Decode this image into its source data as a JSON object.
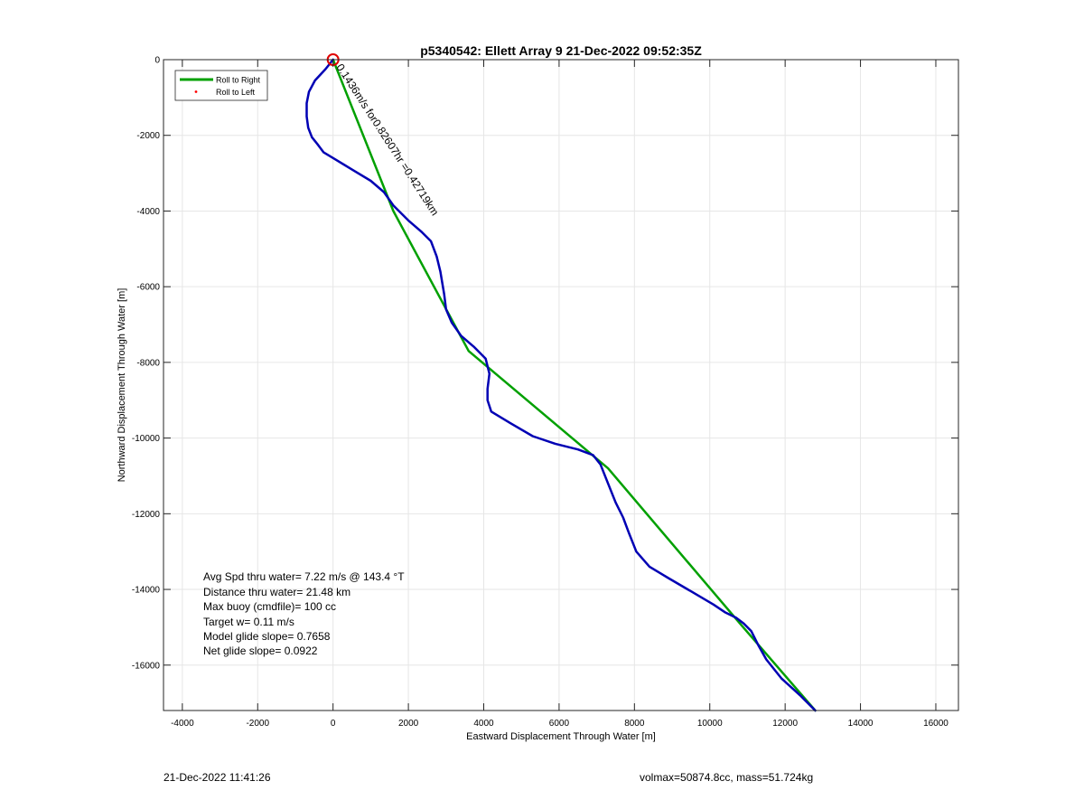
{
  "chart_data": {
    "type": "line",
    "title": "p5340542: Ellett Array 9 21-Dec-2022 09:52:35Z",
    "xlabel": "Eastward Displacement Through Water [m]",
    "ylabel": "Northward Displacement Through Water [m]",
    "xlim": [
      -4500,
      16600
    ],
    "ylim": [
      -17200,
      0
    ],
    "xticks": [
      -4000,
      -2000,
      0,
      2000,
      4000,
      6000,
      8000,
      10000,
      12000,
      14000,
      16000
    ],
    "yticks": [
      0,
      -2000,
      -4000,
      -6000,
      -8000,
      -10000,
      -12000,
      -14000,
      -16000
    ],
    "grid": true,
    "legend": {
      "placement": "top-left",
      "entries": [
        {
          "label": "Roll to Right",
          "color": "#00a000",
          "marker": "line"
        },
        {
          "label": "Roll to Left",
          "color": "#ff0000",
          "marker": "dot"
        }
      ]
    },
    "series": [
      {
        "name": "Roll to Right",
        "color": "#00a000",
        "x": [
          0,
          1600,
          3600,
          7300,
          10800,
          12800
        ],
        "y": [
          0,
          -4000,
          -7700,
          -10800,
          -14900,
          -17200
        ]
      },
      {
        "color": "#0000b4",
        "x": [
          0,
          -200,
          -480,
          -640,
          -700,
          -700,
          -660,
          -560,
          -400,
          -250,
          0,
          500,
          1000,
          1350,
          1600,
          2000,
          2350,
          2600,
          2750,
          2850,
          2900,
          2950,
          3000,
          3150,
          3400,
          3750,
          4050,
          4100,
          4150,
          4100,
          4100,
          4200,
          4700,
          5300,
          5900,
          6500,
          6900,
          7100,
          7300,
          7500,
          7700,
          7850,
          8050,
          8400,
          8900,
          9500,
          10100,
          10400,
          10700,
          10900,
          11100,
          11300,
          11500,
          11900,
          12400,
          12800
        ],
        "y": [
          0,
          -250,
          -550,
          -850,
          -1150,
          -1500,
          -1800,
          -2050,
          -2250,
          -2450,
          -2600,
          -2900,
          -3200,
          -3500,
          -3850,
          -4250,
          -4550,
          -4800,
          -5200,
          -5600,
          -5900,
          -6200,
          -6600,
          -6950,
          -7300,
          -7600,
          -7900,
          -8100,
          -8300,
          -8700,
          -9000,
          -9300,
          -9600,
          -9950,
          -10150,
          -10300,
          -10450,
          -10700,
          -11200,
          -11700,
          -12100,
          -12500,
          -13000,
          -13400,
          -13700,
          -14050,
          -14400,
          -14600,
          -14750,
          -14900,
          -15100,
          -15500,
          -15850,
          -16350,
          -16800,
          -17200
        ]
      }
    ],
    "start_marker": {
      "x": 0,
      "y": 0,
      "color": "#e00000"
    },
    "annotation_label": "0.1436m/s for0.82607hr =0.42719km",
    "stats_lines": [
      "Avg Spd thru water=  7.22 m/s @ 143.4 °T",
      "Distance thru water= 21.48 km",
      "Max buoy (cmdfile)= 100 cc",
      "Target w= 0.11 m/s",
      "Model glide slope= 0.7658",
      "Net glide slope= 0.0922"
    ]
  },
  "footer": {
    "timestamp": "21-Dec-2022 11:41:26",
    "info": "volmax=50874.8cc, mass=51.724kg"
  }
}
